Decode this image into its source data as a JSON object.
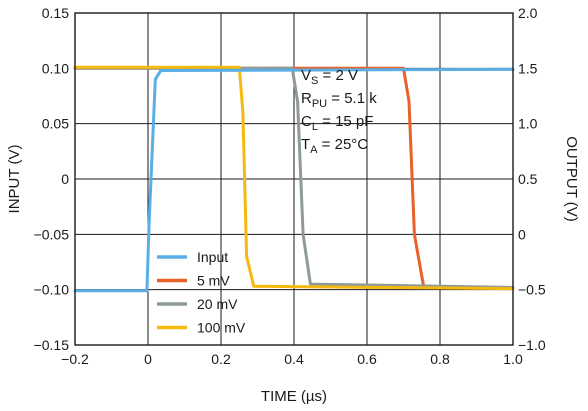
{
  "chart_data": {
    "type": "line",
    "xlabel": "TIME (µs)",
    "ylabel_left": "INPUT (V)",
    "ylabel_right": "OUTPUT (V)",
    "xlim": [
      -0.2,
      1.0
    ],
    "ylim_left": [
      -0.15,
      0.15
    ],
    "ylim_right": [
      -1.0,
      2.0
    ],
    "x_ticks": [
      "−0.2",
      "0",
      "0.2",
      "0.4",
      "0.6",
      "0.8",
      "1.0"
    ],
    "y_left_ticks": [
      "0.15",
      "0.10",
      "0.05",
      "0",
      "−0.05",
      "−0.10",
      "−0.15"
    ],
    "y_right_ticks": [
      "2.0",
      "1.5",
      "1.0",
      "0.5",
      "0",
      "−0.5",
      "−1.0"
    ],
    "grid": true,
    "legend_position": "bottom-left",
    "series": [
      {
        "name": "Input",
        "color": "#5aaee6",
        "axis": "left",
        "x": [
          -0.2,
          -0.003,
          0.003,
          0.02,
          0.035,
          1.0
        ],
        "y": [
          -0.101,
          -0.101,
          -0.04,
          0.09,
          0.098,
          0.099
        ]
      },
      {
        "name": "5 mV",
        "color": "#e8622a",
        "axis": "right",
        "x": [
          -0.2,
          0.7,
          0.715,
          0.73,
          0.755,
          1.0
        ],
        "y": [
          1.5,
          1.5,
          1.2,
          0.0,
          -0.47,
          -0.49
        ]
      },
      {
        "name": "20 mV",
        "color": "#8e9a96",
        "axis": "right",
        "x": [
          -0.2,
          0.395,
          0.41,
          0.425,
          0.445,
          1.0
        ],
        "y": [
          1.5,
          1.5,
          1.2,
          0.0,
          -0.45,
          -0.48
        ]
      },
      {
        "name": "100 mV",
        "color": "#f5b90f",
        "axis": "right",
        "x": [
          -0.2,
          0.25,
          0.26,
          0.27,
          0.29,
          1.0
        ],
        "y": [
          1.51,
          1.51,
          1.1,
          -0.2,
          -0.47,
          -0.49
        ]
      }
    ],
    "annotations": [
      {
        "main": "V",
        "sub": "S",
        "rest": " = 2 V"
      },
      {
        "main": "R",
        "sub": "PU",
        "rest": " = 5.1 k"
      },
      {
        "main": "C",
        "sub": "L",
        "rest": " = 15 pF"
      },
      {
        "main": "T",
        "sub": "A",
        "rest": " = 25°C"
      }
    ]
  }
}
